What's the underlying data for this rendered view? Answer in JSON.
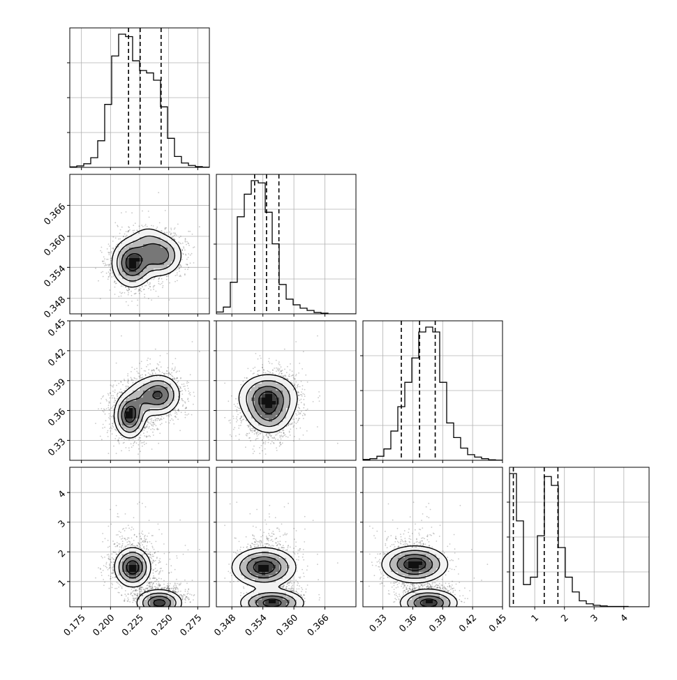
{
  "chart_data": {
    "type": "corner",
    "grid": true,
    "params": [
      {
        "range": [
          0.165,
          0.285
        ],
        "ticks": [
          0.175,
          0.2,
          0.225,
          0.25,
          0.275
        ],
        "tick_labels": [
          "0.175",
          "0.200",
          "0.225",
          "0.250",
          "0.275"
        ],
        "quantiles": [
          0.2155,
          0.2255,
          0.2435
        ]
      },
      {
        "range": [
          0.345,
          0.372
        ],
        "ticks": [
          0.348,
          0.354,
          0.36,
          0.366
        ],
        "tick_labels": [
          "0.348",
          "0.354",
          "0.360",
          "0.366"
        ],
        "quantiles": [
          0.3524,
          0.3547,
          0.3571
        ]
      },
      {
        "range": [
          0.31,
          0.45
        ],
        "ticks": [
          0.33,
          0.36,
          0.39,
          0.42,
          0.45
        ],
        "tick_labels": [
          "0.33",
          "0.36",
          "0.39",
          "0.42",
          "0.45"
        ],
        "quantiles": [
          0.3485,
          0.3668,
          0.3825
        ]
      },
      {
        "range": [
          0.15,
          4.85
        ],
        "ticks": [
          1,
          2,
          3,
          4
        ],
        "tick_labels": [
          "1",
          "2",
          "3",
          "4"
        ],
        "quantiles": [
          0.28,
          1.32,
          1.78
        ]
      }
    ],
    "histograms": [
      {
        "bins": 20,
        "counts": [
          0.2,
          0.6,
          1.5,
          4.0,
          11,
          26,
          46,
          55,
          54,
          44,
          40,
          39,
          36,
          25,
          12,
          4.5,
          1.8,
          0.8,
          0.3,
          0.1
        ]
      },
      {
        "bins": 20,
        "counts": [
          0.8,
          3,
          14,
          43,
          53,
          59,
          58,
          45,
          31,
          13,
          6.5,
          4,
          2.5,
          1.5,
          0.6,
          0.3,
          0,
          0,
          0,
          0
        ]
      },
      {
        "bins": 20,
        "counts": [
          0.5,
          1,
          2.5,
          7,
          18,
          33,
          48,
          63,
          79,
          82,
          79,
          48,
          23,
          14,
          7.5,
          3.5,
          2,
          1,
          0.3,
          0.1
        ]
      },
      {
        "bins": 20,
        "counts": [
          45,
          29,
          7.5,
          10,
          24,
          44,
          41,
          20,
          10,
          5,
          2,
          1,
          0.5,
          0.3,
          0.1,
          0.1,
          0.1,
          0,
          0,
          0
        ]
      }
    ],
    "density_modes": [
      {
        "x": 0.2187,
        "y": 0.3549,
        "w": 1.0,
        "sx": 0.009,
        "sy": 0.0024,
        "r": 0.1
      },
      {
        "x": 0.242,
        "y": 0.3566,
        "w": 0.75,
        "sx": 0.01,
        "sy": 0.002,
        "r": 0.3
      },
      {
        "x": 0.23,
        "y": 0.36,
        "w": 0.2,
        "sx": 0.008,
        "sy": 0.002,
        "r": 0.2
      }
    ]
  }
}
